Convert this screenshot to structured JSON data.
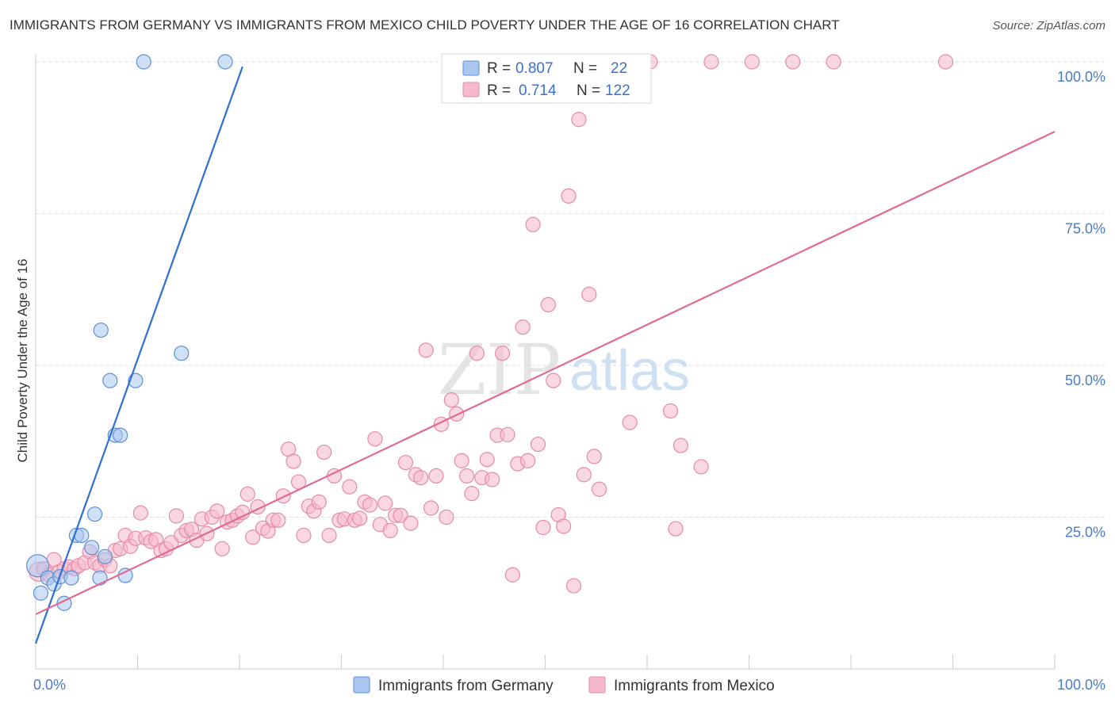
{
  "title": "IMMIGRANTS FROM GERMANY VS IMMIGRANTS FROM MEXICO CHILD POVERTY UNDER THE AGE OF 16 CORRELATION CHART",
  "source": "Source: ZipAtlas.com",
  "watermark": {
    "zip": "ZIP",
    "atlas": "atlas"
  },
  "colors": {
    "germany_fill": "#a9c6f0",
    "germany_stroke": "#5b8fd6",
    "germany_line": "#2f6fd0",
    "mexico_fill": "#f6b8cb",
    "mexico_stroke": "#e58aa6",
    "mexico_line": "#e06a92",
    "axis_text": "#4a7ac9",
    "grid": "#dddddd"
  },
  "legend": {
    "rows": [
      {
        "r_label": "R =",
        "r_value": "0.807",
        "n_label": "N =",
        "n_value": "22"
      },
      {
        "r_label": "R =",
        "r_value": "0.714",
        "n_label": "N =",
        "n_value": "122"
      }
    ]
  },
  "chart_data": {
    "type": "scatter",
    "title": "IMMIGRANTS FROM GERMANY VS IMMIGRANTS FROM MEXICO CHILD POVERTY UNDER THE AGE OF 16 CORRELATION CHART",
    "xlabel": "",
    "ylabel": "Child Poverty Under the Age of 16",
    "xlim": [
      0,
      100
    ],
    "ylim": [
      0,
      102
    ],
    "y_ticks": [
      25,
      50,
      75,
      100
    ],
    "y_tick_labels": [
      "25.0%",
      "50.0%",
      "75.0%",
      "100.0%"
    ],
    "x_tick_labels": [
      "0.0%",
      "100.0%"
    ],
    "grid": true,
    "legend_position": "top-center",
    "series": [
      {
        "name": "Immigrants from Germany",
        "color": "#a9c6f0",
        "trend": {
          "x": [
            0,
            20.3
          ],
          "y": [
            4.2,
            99.2
          ]
        },
        "points": [
          [
            0.2,
            17.0
          ],
          [
            0.5,
            12.5
          ],
          [
            1.2,
            15.0
          ],
          [
            1.8,
            14.0
          ],
          [
            2.4,
            15.2
          ],
          [
            2.8,
            10.8
          ],
          [
            3.5,
            15.0
          ],
          [
            4.0,
            22.0
          ],
          [
            4.5,
            22.0
          ],
          [
            5.5,
            20.0
          ],
          [
            5.8,
            25.5
          ],
          [
            6.3,
            15.0
          ],
          [
            6.8,
            18.5
          ],
          [
            7.3,
            47.5
          ],
          [
            7.8,
            38.5
          ],
          [
            8.3,
            38.5
          ],
          [
            8.8,
            15.4
          ],
          [
            9.8,
            47.5
          ],
          [
            10.6,
            100
          ],
          [
            14.3,
            52.0
          ],
          [
            18.6,
            100
          ],
          [
            6.4,
            55.8
          ]
        ]
      },
      {
        "name": "Immigrants from Mexico",
        "color": "#f6b8cb",
        "trend": {
          "x": [
            0,
            100
          ],
          "y": [
            9.0,
            88.5
          ]
        },
        "points": [
          [
            0.3,
            16.0
          ],
          [
            0.8,
            16.5
          ],
          [
            1.3,
            15.5
          ],
          [
            1.8,
            18.0
          ],
          [
            2.3,
            16.0
          ],
          [
            2.8,
            16.5
          ],
          [
            3.3,
            16.8
          ],
          [
            3.8,
            16.5
          ],
          [
            4.2,
            17.0
          ],
          [
            4.8,
            17.5
          ],
          [
            5.3,
            19.3
          ],
          [
            5.8,
            17.5
          ],
          [
            6.3,
            17.0
          ],
          [
            6.8,
            18.0
          ],
          [
            7.3,
            17.0
          ],
          [
            7.8,
            19.5
          ],
          [
            8.3,
            19.8
          ],
          [
            8.8,
            22.0
          ],
          [
            9.3,
            20.2
          ],
          [
            9.8,
            21.5
          ],
          [
            10.3,
            25.7
          ],
          [
            10.8,
            21.6
          ],
          [
            11.3,
            21.0
          ],
          [
            11.8,
            21.3
          ],
          [
            12.3,
            19.5
          ],
          [
            12.8,
            19.8
          ],
          [
            13.3,
            20.8
          ],
          [
            13.8,
            25.2
          ],
          [
            14.3,
            22.0
          ],
          [
            14.8,
            22.8
          ],
          [
            15.3,
            23.0
          ],
          [
            15.8,
            21.2
          ],
          [
            16.3,
            24.7
          ],
          [
            16.8,
            22.3
          ],
          [
            17.3,
            25.0
          ],
          [
            17.8,
            26.0
          ],
          [
            18.3,
            19.8
          ],
          [
            18.8,
            24.2
          ],
          [
            19.3,
            24.5
          ],
          [
            19.8,
            25.2
          ],
          [
            20.3,
            25.8
          ],
          [
            20.8,
            28.8
          ],
          [
            21.3,
            21.7
          ],
          [
            21.8,
            26.7
          ],
          [
            22.3,
            23.2
          ],
          [
            22.8,
            22.7
          ],
          [
            23.3,
            24.5
          ],
          [
            23.8,
            24.5
          ],
          [
            24.3,
            28.5
          ],
          [
            24.8,
            36.2
          ],
          [
            25.3,
            34.2
          ],
          [
            25.8,
            30.8
          ],
          [
            26.3,
            22.0
          ],
          [
            26.8,
            26.8
          ],
          [
            27.3,
            26.0
          ],
          [
            27.8,
            27.5
          ],
          [
            28.3,
            35.7
          ],
          [
            28.8,
            22.0
          ],
          [
            29.3,
            31.8
          ],
          [
            29.8,
            24.5
          ],
          [
            30.3,
            24.7
          ],
          [
            30.8,
            30.0
          ],
          [
            31.3,
            24.5
          ],
          [
            31.8,
            24.8
          ],
          [
            32.3,
            27.5
          ],
          [
            32.8,
            27.0
          ],
          [
            33.3,
            37.9
          ],
          [
            33.8,
            23.8
          ],
          [
            34.3,
            27.3
          ],
          [
            34.8,
            22.8
          ],
          [
            35.3,
            25.3
          ],
          [
            35.8,
            25.3
          ],
          [
            36.3,
            34.0
          ],
          [
            36.8,
            24.0
          ],
          [
            37.3,
            32.0
          ],
          [
            37.8,
            31.5
          ],
          [
            38.3,
            52.5
          ],
          [
            38.8,
            26.5
          ],
          [
            39.3,
            31.8
          ],
          [
            39.8,
            40.3
          ],
          [
            40.3,
            25.0
          ],
          [
            40.8,
            44.3
          ],
          [
            41.3,
            42.0
          ],
          [
            41.8,
            34.3
          ],
          [
            42.3,
            31.8
          ],
          [
            42.8,
            28.9
          ],
          [
            43.3,
            52.0
          ],
          [
            43.8,
            31.5
          ],
          [
            44.3,
            34.5
          ],
          [
            44.8,
            31.2
          ],
          [
            45.3,
            38.5
          ],
          [
            45.8,
            52.0
          ],
          [
            46.3,
            38.6
          ],
          [
            46.8,
            15.5
          ],
          [
            47.3,
            33.8
          ],
          [
            47.8,
            56.3
          ],
          [
            48.3,
            34.3
          ],
          [
            48.8,
            73.2
          ],
          [
            49.3,
            37.0
          ],
          [
            49.8,
            23.3
          ],
          [
            50.3,
            60.0
          ],
          [
            50.8,
            47.5
          ],
          [
            51.3,
            25.4
          ],
          [
            51.8,
            23.5
          ],
          [
            52.3,
            77.9
          ],
          [
            52.8,
            13.7
          ],
          [
            53.3,
            90.5
          ],
          [
            53.8,
            32.0
          ],
          [
            54.3,
            61.7
          ],
          [
            54.8,
            35.0
          ],
          [
            55.3,
            29.6
          ],
          [
            58.3,
            40.6
          ],
          [
            60.3,
            100
          ],
          [
            62.3,
            42.5
          ],
          [
            62.8,
            23.1
          ],
          [
            63.3,
            36.8
          ],
          [
            65.3,
            33.3
          ],
          [
            66.3,
            100
          ],
          [
            74.3,
            100
          ],
          [
            78.3,
            100
          ],
          [
            89.3,
            100
          ],
          [
            70.3,
            100
          ]
        ]
      }
    ]
  }
}
